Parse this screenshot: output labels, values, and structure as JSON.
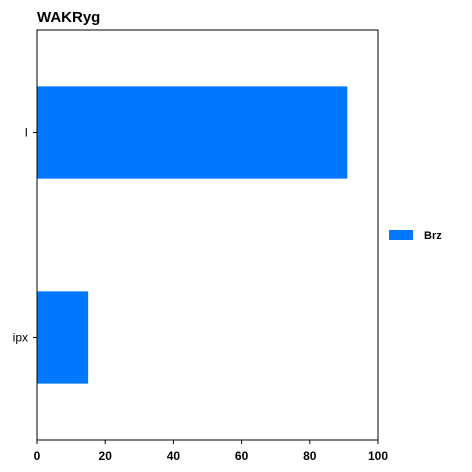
{
  "chart_data": {
    "type": "bar",
    "orientation": "horizontal",
    "title": "WAKRyg",
    "xlabel": "",
    "ylabel": "",
    "categories": [
      "I",
      "ipx"
    ],
    "series": [
      {
        "name": "Brz",
        "values": [
          91,
          15
        ],
        "color": "#0077ff"
      }
    ],
    "xlim": [
      0,
      100
    ],
    "xticks": [
      0,
      20,
      40,
      60,
      80,
      100
    ],
    "grid": false,
    "legend_position": "right"
  }
}
